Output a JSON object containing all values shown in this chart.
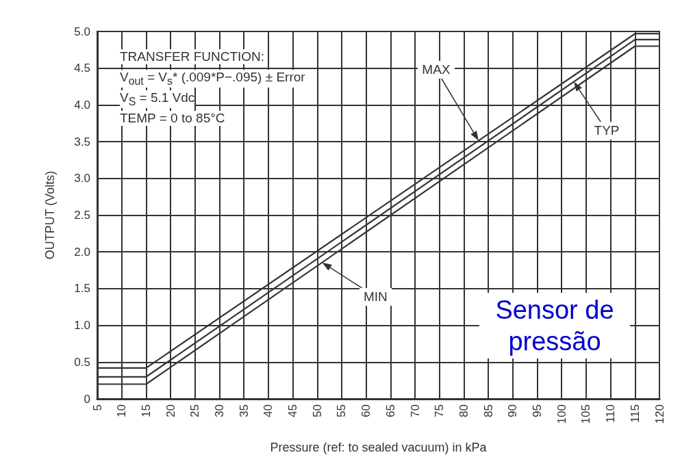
{
  "chart_data": {
    "type": "line",
    "xlabel": "Pressure (ref: to sealed vacuum) in kPa",
    "ylabel": "OUTPUT (Volts)",
    "x": [
      5,
      15,
      115,
      120
    ],
    "series": [
      {
        "color": "#333333",
        "values": [
          0.42,
          0.42,
          4.97,
          4.97
        ]
      },
      {
        "color": "#333333",
        "values": [
          0.3,
          0.3,
          4.89,
          4.89
        ]
      },
      {
        "color": "#333333",
        "values": [
          0.2,
          0.2,
          4.8,
          4.8
        ]
      }
    ],
    "xlim": [
      5,
      120
    ],
    "xticks": [
      5,
      10,
      15,
      20,
      25,
      30,
      35,
      40,
      45,
      50,
      55,
      60,
      65,
      70,
      75,
      80,
      85,
      90,
      95,
      100,
      105,
      110,
      115,
      120
    ],
    "ylim": [
      0,
      5
    ],
    "yticks": [
      0,
      0.5,
      {
        "value": 1,
        "label": "1.0"
      },
      1.5,
      {
        "value": 2,
        "label": "2.0"
      },
      2.5,
      {
        "value": 3,
        "label": "3.0"
      },
      3.5,
      {
        "value": 4,
        "label": "4.0"
      },
      4.5,
      {
        "value": 5,
        "label": "5.0"
      }
    ],
    "grid": true,
    "marker": "none",
    "line_style": "solid",
    "annotations": [
      "TRANSFER FUNCTION:",
      "V$_{out}$ = V$_{s}$* (.009*P−.095) ± Error",
      "V$_{S}$ = 5.1 Vdc",
      "TEMP = 0 to 85°C",
      "MAX",
      "TYP",
      "MIN",
      "Sensor de pressão"
    ]
  }
}
